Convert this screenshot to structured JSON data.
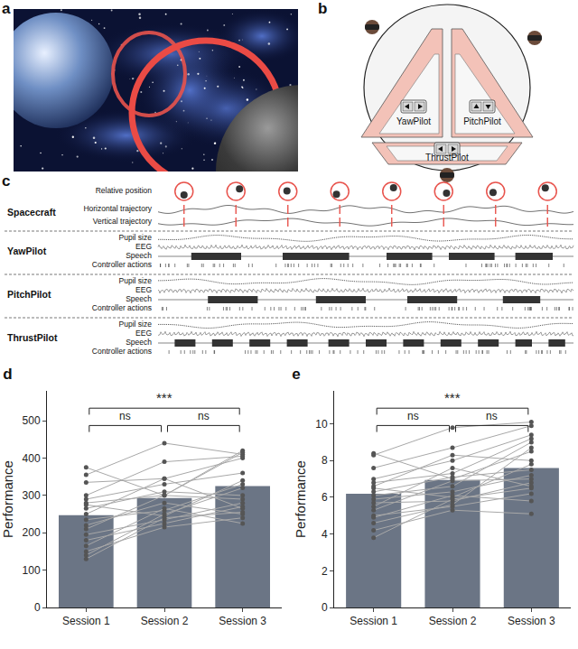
{
  "panels": {
    "a": {
      "label": "a"
    },
    "b": {
      "label": "b",
      "stations": [
        "YawPilot",
        "PitchPilot",
        "ThrustPilot"
      ]
    },
    "c": {
      "label": "c",
      "groups": [
        {
          "title": "Spacecraft",
          "rows": [
            "Relative position",
            "Horizontal trajectory",
            "Vertical trajectory"
          ]
        },
        {
          "title": "YawPilot",
          "rows": [
            "Pupil size",
            "EEG",
            "Speech",
            "Controller actions"
          ]
        },
        {
          "title": "PitchPilot",
          "rows": [
            "Pupil size",
            "EEG",
            "Speech",
            "Controller actions"
          ]
        },
        {
          "title": "ThrustPilot",
          "rows": [
            "Pupil size",
            "EEG",
            "Speech",
            "Controller actions"
          ]
        }
      ]
    }
  },
  "chart_data": [
    {
      "title": "d",
      "type": "bar",
      "categories": [
        "Session 1",
        "Session 2",
        "Session 3"
      ],
      "values": [
        247,
        293,
        325
      ],
      "color": "#6b7585",
      "ylabel": "Performance",
      "ylim": [
        0,
        580
      ],
      "yticks": [
        0,
        100,
        200,
        300,
        400,
        500
      ],
      "grid": false,
      "series": [
        {
          "type": "line",
          "marker": "circle",
          "color": "#a8a8a8",
          "values": [
            375,
            300,
            420
          ]
        },
        {
          "type": "line",
          "marker": "circle",
          "color": "#a8a8a8",
          "values": [
            355,
            440,
            410
          ]
        },
        {
          "type": "line",
          "marker": "circle",
          "color": "#a8a8a8",
          "values": [
            335,
            345,
            400
          ]
        },
        {
          "type": "line",
          "marker": "circle",
          "color": "#a8a8a8",
          "values": [
            300,
            390,
            405
          ]
        },
        {
          "type": "line",
          "marker": "circle",
          "color": "#a8a8a8",
          "values": [
            290,
            330,
            360
          ]
        },
        {
          "type": "line",
          "marker": "circle",
          "color": "#a8a8a8",
          "values": [
            280,
            300,
            415
          ]
        },
        {
          "type": "line",
          "marker": "circle",
          "color": "#a8a8a8",
          "values": [
            275,
            245,
            340
          ]
        },
        {
          "type": "line",
          "marker": "circle",
          "color": "#a8a8a8",
          "values": [
            265,
            310,
            300
          ]
        },
        {
          "type": "line",
          "marker": "circle",
          "color": "#a8a8a8",
          "values": [
            250,
            345,
            265
          ]
        },
        {
          "type": "line",
          "marker": "circle",
          "color": "#a8a8a8",
          "values": [
            235,
            260,
            330
          ]
        },
        {
          "type": "line",
          "marker": "circle",
          "color": "#a8a8a8",
          "values": [
            220,
            280,
            250
          ]
        },
        {
          "type": "line",
          "marker": "circle",
          "color": "#a8a8a8",
          "values": [
            210,
            300,
            290
          ]
        },
        {
          "type": "line",
          "marker": "circle",
          "color": "#a8a8a8",
          "values": [
            195,
            235,
            280
          ]
        },
        {
          "type": "line",
          "marker": "circle",
          "color": "#a8a8a8",
          "values": [
            180,
            225,
            270
          ]
        },
        {
          "type": "line",
          "marker": "circle",
          "color": "#a8a8a8",
          "values": [
            165,
            265,
            225
          ]
        },
        {
          "type": "line",
          "marker": "circle",
          "color": "#a8a8a8",
          "values": [
            150,
            215,
            240
          ]
        },
        {
          "type": "line",
          "marker": "circle",
          "color": "#a8a8a8",
          "values": [
            140,
            250,
            320
          ]
        },
        {
          "type": "line",
          "marker": "circle",
          "color": "#a8a8a8",
          "values": [
            130,
            240,
            255
          ]
        }
      ],
      "annotations": [
        {
          "from": "Session 1",
          "to": "Session 2",
          "text": "ns"
        },
        {
          "from": "Session 2",
          "to": "Session 3",
          "text": "ns"
        },
        {
          "from": "Session 1",
          "to": "Session 3",
          "text": "***"
        }
      ]
    },
    {
      "title": "e",
      "type": "bar",
      "categories": [
        "Session 1",
        "Session 2",
        "Session 3"
      ],
      "values": [
        6.2,
        6.95,
        7.6
      ],
      "color": "#6b7585",
      "ylabel": "Performance",
      "ylim": [
        0,
        11.8
      ],
      "yticks": [
        0,
        2,
        4,
        6,
        8,
        10
      ],
      "grid": false,
      "series": [
        {
          "type": "line",
          "marker": "circle",
          "color": "#a8a8a8",
          "values": [
            8.4,
            7.0,
            8.5
          ]
        },
        {
          "type": "line",
          "marker": "circle",
          "color": "#a8a8a8",
          "values": [
            8.3,
            9.8,
            10.1
          ]
        },
        {
          "type": "line",
          "marker": "circle",
          "color": "#a8a8a8",
          "values": [
            7.6,
            8.7,
            9.9
          ]
        },
        {
          "type": "line",
          "marker": "circle",
          "color": "#a8a8a8",
          "values": [
            7.0,
            8.0,
            9.4
          ]
        },
        {
          "type": "line",
          "marker": "circle",
          "color": "#a8a8a8",
          "values": [
            6.8,
            7.3,
            9.2
          ]
        },
        {
          "type": "line",
          "marker": "circle",
          "color": "#a8a8a8",
          "values": [
            6.6,
            8.3,
            8.0
          ]
        },
        {
          "type": "line",
          "marker": "circle",
          "color": "#a8a8a8",
          "values": [
            6.5,
            6.0,
            7.8
          ]
        },
        {
          "type": "line",
          "marker": "circle",
          "color": "#a8a8a8",
          "values": [
            6.3,
            7.1,
            7.5
          ]
        },
        {
          "type": "line",
          "marker": "circle",
          "color": "#a8a8a8",
          "values": [
            6.1,
            6.6,
            9.0
          ]
        },
        {
          "type": "line",
          "marker": "circle",
          "color": "#a8a8a8",
          "values": [
            5.9,
            6.3,
            7.2
          ]
        },
        {
          "type": "line",
          "marker": "circle",
          "color": "#a8a8a8",
          "values": [
            5.7,
            5.8,
            6.8
          ]
        },
        {
          "type": "line",
          "marker": "circle",
          "color": "#a8a8a8",
          "values": [
            5.5,
            7.6,
            6.6
          ]
        },
        {
          "type": "line",
          "marker": "circle",
          "color": "#a8a8a8",
          "values": [
            5.3,
            6.9,
            7.0
          ]
        },
        {
          "type": "line",
          "marker": "circle",
          "color": "#a8a8a8",
          "values": [
            5.0,
            5.5,
            6.2
          ]
        },
        {
          "type": "line",
          "marker": "circle",
          "color": "#a8a8a8",
          "values": [
            4.9,
            6.1,
            5.8
          ]
        },
        {
          "type": "line",
          "marker": "circle",
          "color": "#a8a8a8",
          "values": [
            4.6,
            5.6,
            8.7
          ]
        },
        {
          "type": "line",
          "marker": "circle",
          "color": "#a8a8a8",
          "values": [
            4.2,
            5.3,
            5.1
          ]
        },
        {
          "type": "line",
          "marker": "circle",
          "color": "#a8a8a8",
          "values": [
            3.8,
            5.9,
            6.5
          ]
        }
      ],
      "annotations": [
        {
          "from": "Session 1",
          "to": "Session 2",
          "text": "ns"
        },
        {
          "from": "Session 2",
          "to": "Session 3",
          "text": "ns"
        },
        {
          "from": "Session 1",
          "to": "Session 3",
          "text": "***"
        }
      ]
    }
  ]
}
